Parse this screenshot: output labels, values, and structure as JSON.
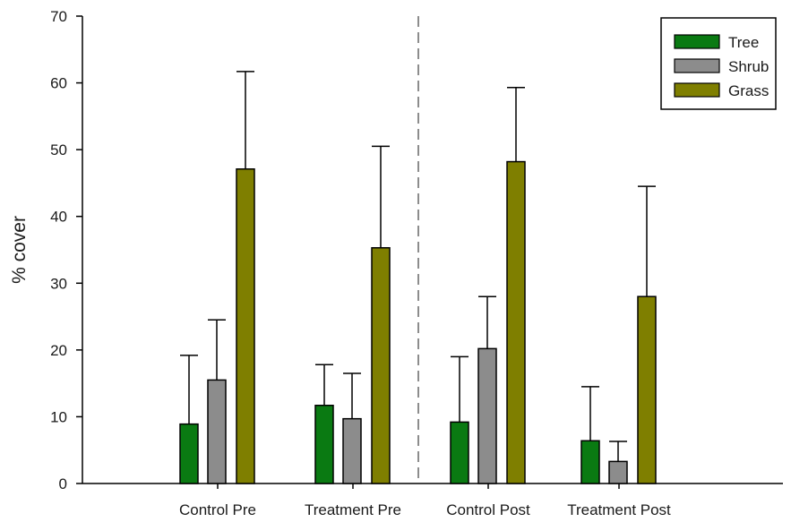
{
  "chart_data": {
    "type": "bar",
    "title": "",
    "xlabel": "",
    "ylabel": "% cover",
    "ylim": [
      0,
      70
    ],
    "yticks": [
      0,
      10,
      20,
      30,
      40,
      50,
      60,
      70
    ],
    "categories": [
      "Control Pre",
      "Treatment Pre",
      "Control Post",
      "Treatment Post"
    ],
    "series": [
      {
        "name": "Tree",
        "color": "#0a7a12",
        "values": [
          8.9,
          11.7,
          9.2,
          6.4
        ],
        "error_upper": [
          19.2,
          17.8,
          19.0,
          14.5
        ]
      },
      {
        "name": "Shrub",
        "color": "#8c8c8c",
        "values": [
          15.5,
          9.7,
          20.2,
          3.3
        ],
        "error_upper": [
          24.5,
          16.5,
          28.0,
          6.3
        ]
      },
      {
        "name": "Grass",
        "color": "#7f7f00",
        "values": [
          47.1,
          35.3,
          48.2,
          28.0
        ],
        "error_upper": [
          61.7,
          50.5,
          59.3,
          44.5
        ]
      }
    ],
    "error_bars": "upper",
    "divider": "dashed vertical line between Treatment Pre and Control Post",
    "legend_position": "top-right",
    "grid": false
  }
}
